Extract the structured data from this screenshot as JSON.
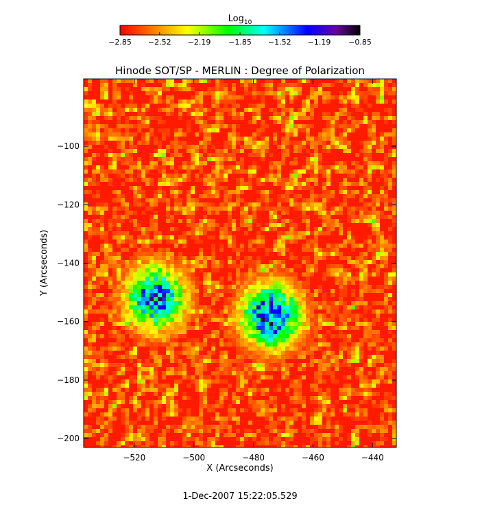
{
  "chart_data": {
    "type": "heatmap",
    "title": "Hinode SOT/SP - MERLIN : Degree of Polarization",
    "xlabel": "X (Arcseconds)",
    "ylabel": "Y (Arcseconds)",
    "xlim": [
      -537,
      -432
    ],
    "ylim": [
      -203,
      -77
    ],
    "x_ticks": [
      -520,
      -500,
      -480,
      -460,
      -440
    ],
    "y_ticks": [
      -100,
      -120,
      -140,
      -160,
      -180,
      -200
    ],
    "x_tick_labels": [
      "−520",
      "−500",
      "−480",
      "−460",
      "−440"
    ],
    "y_tick_labels": [
      "−100",
      "−120",
      "−140",
      "−160",
      "−180",
      "−200"
    ],
    "colorbar": {
      "title": "Log",
      "title_subscript": "10",
      "range": [
        -2.85,
        -0.85
      ],
      "ticks": [
        -2.85,
        -2.52,
        -2.19,
        -1.85,
        -1.52,
        -1.19,
        -0.85
      ],
      "tick_labels": [
        "−2.85",
        "−2.52",
        "−2.19",
        "−1.85",
        "−1.52",
        "−1.19",
        "−0.85"
      ],
      "colormap": [
        "#ff0000",
        "#ffff00",
        "#00ff00",
        "#00ffff",
        "#0000ff",
        "#5a0090",
        "#000000"
      ]
    },
    "features": [
      {
        "x": -513,
        "y": -152,
        "value": -1.1
      },
      {
        "x": -474,
        "y": -158,
        "value": -0.95
      }
    ],
    "background_level": -2.7
  },
  "footer": {
    "timestamp": "1-Dec-2007 15:22:05.529"
  }
}
